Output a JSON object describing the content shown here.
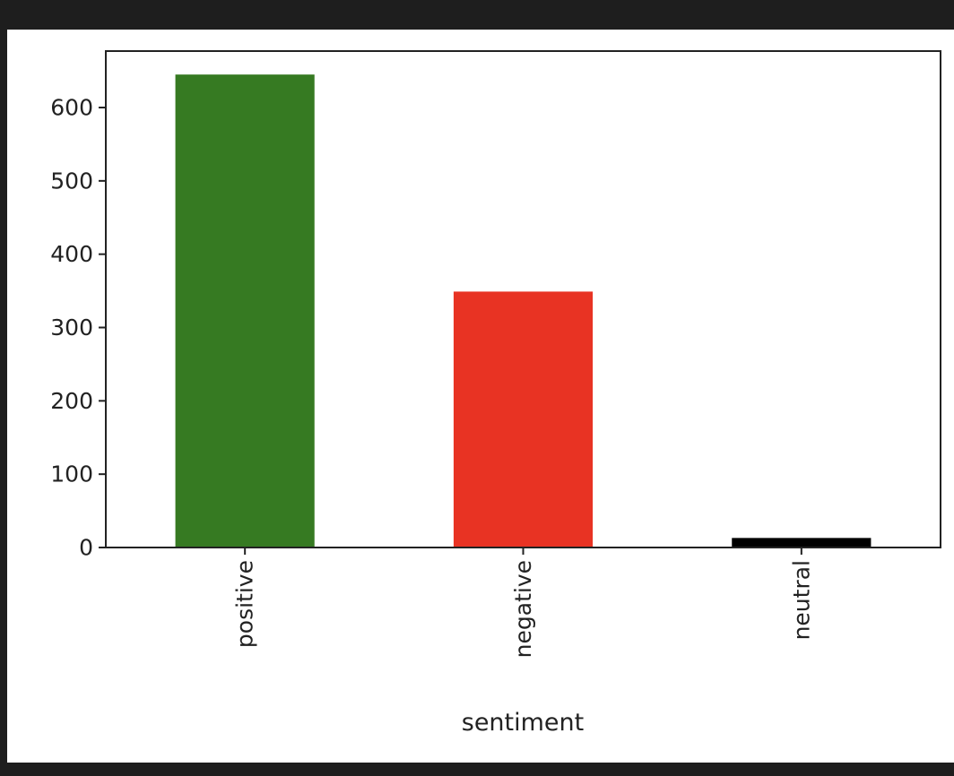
{
  "chart_data": {
    "type": "bar",
    "categories": [
      "positive",
      "negative",
      "neutral"
    ],
    "values": [
      645,
      349,
      13
    ],
    "colors": [
      "#367a22",
      "#e83323",
      "#000000"
    ],
    "xlabel": "sentiment",
    "ylabel": "",
    "ylim": [
      0,
      677
    ],
    "yticks": [
      0,
      100,
      200,
      300,
      400,
      500,
      600
    ],
    "grid": false,
    "legend": false
  }
}
